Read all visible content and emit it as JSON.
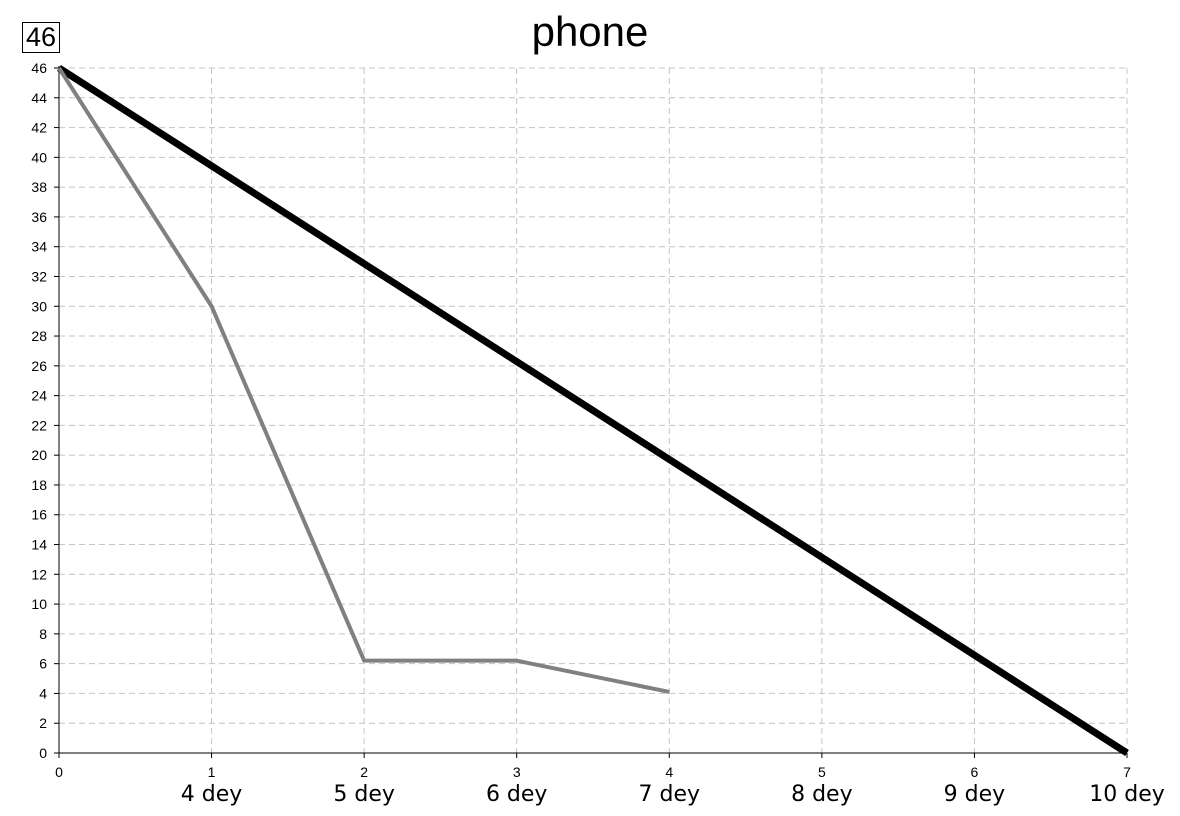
{
  "badge": "46",
  "chart_data": {
    "type": "line",
    "title": "phone",
    "xlabel": "",
    "ylabel": "",
    "xlim": [
      0,
      7
    ],
    "ylim": [
      0,
      46
    ],
    "x_ticks": [
      0,
      1,
      2,
      3,
      4,
      5,
      6,
      7
    ],
    "y_ticks": [
      0,
      2,
      4,
      6,
      8,
      10,
      12,
      14,
      16,
      18,
      20,
      22,
      24,
      26,
      28,
      30,
      32,
      34,
      36,
      38,
      40,
      42,
      44,
      46
    ],
    "day_labels": [
      {
        "x": 1,
        "text": "4 dey"
      },
      {
        "x": 2,
        "text": "5 dey"
      },
      {
        "x": 3,
        "text": "6 dey"
      },
      {
        "x": 4,
        "text": "7 dey"
      },
      {
        "x": 5,
        "text": "8 dey"
      },
      {
        "x": 6,
        "text": "9 dey"
      },
      {
        "x": 7,
        "text": "10 dey"
      }
    ],
    "grid": true,
    "series": [
      {
        "color": "#000000",
        "x": [
          0,
          7
        ],
        "y": [
          46,
          0
        ]
      },
      {
        "color": "#808080",
        "x": [
          0,
          1,
          2,
          3,
          4
        ],
        "y": [
          46,
          30,
          6.2,
          6.2,
          4.1
        ]
      }
    ]
  }
}
